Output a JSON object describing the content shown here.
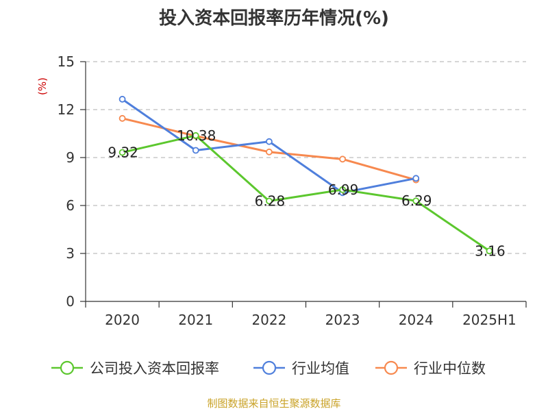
{
  "title": "投入资本回报率历年情况(%)",
  "source": "制图数据来自恒生聚源数据库",
  "chart_data": {
    "type": "line",
    "title": "投入资本回报率历年情况(%)",
    "unit": "(%)",
    "categories": [
      "2020",
      "2021",
      "2022",
      "2023",
      "2024",
      "2025H1"
    ],
    "ylim": [
      0,
      15
    ],
    "yticks": [
      0,
      3,
      6,
      9,
      12,
      15
    ],
    "grid": true,
    "legend_position": "bottom",
    "series": [
      {
        "name": "公司投入资本回报率",
        "color": "#5cc72e",
        "values": [
          9.32,
          10.38,
          6.28,
          6.99,
          6.29,
          3.16
        ],
        "labels": true
      },
      {
        "name": "行业均值",
        "color": "#4f7fdc",
        "values": [
          12.65,
          9.45,
          10.0,
          6.8,
          7.7,
          null
        ],
        "labels": false
      },
      {
        "name": "行业中位数",
        "color": "#f7894f",
        "values": [
          11.45,
          10.35,
          9.35,
          8.9,
          7.6,
          null
        ],
        "labels": false
      }
    ]
  }
}
